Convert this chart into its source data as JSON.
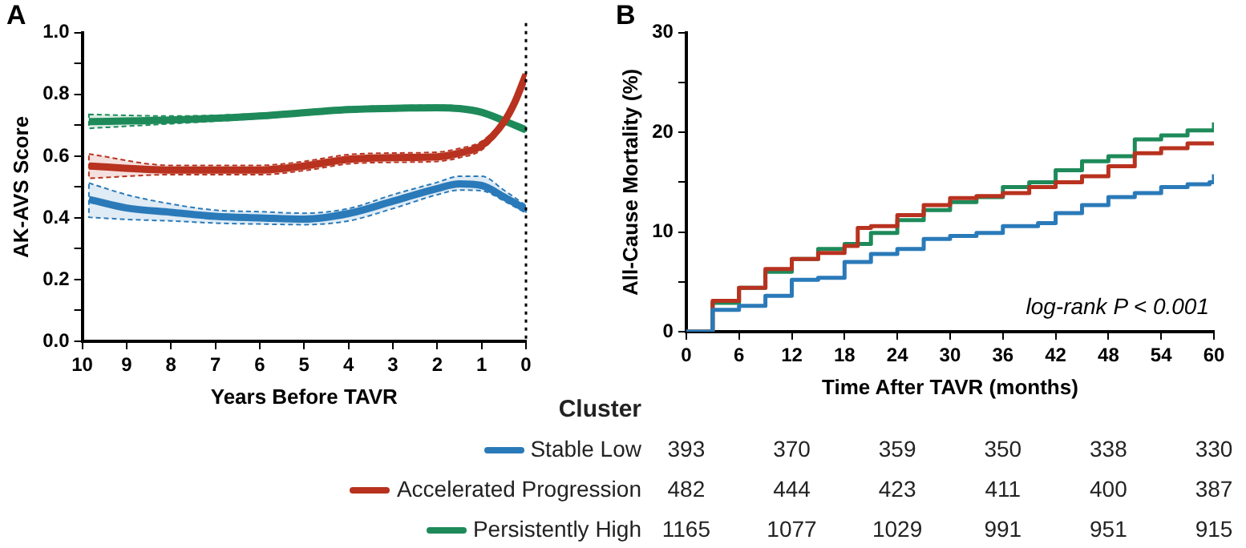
{
  "chart_data": [
    {
      "type": "line",
      "title": "A",
      "xlabel": "Years Before TAVR",
      "ylabel": "AK-AVS Score",
      "xlim": [
        10,
        0
      ],
      "xticks": [
        10,
        9,
        8,
        7,
        6,
        5,
        4,
        3,
        2,
        1,
        0
      ],
      "ylim": [
        0,
        1
      ],
      "yticks": [
        {
          "value": 0,
          "label": "0.0"
        },
        {
          "value": 0.1,
          "label": null
        },
        {
          "value": 0.2,
          "label": "0.2"
        },
        {
          "value": 0.3,
          "label": null
        },
        {
          "value": 0.4,
          "label": "0.4"
        },
        {
          "value": 0.5,
          "label": null
        },
        {
          "value": 0.6,
          "label": "0.6"
        },
        {
          "value": 0.7,
          "label": null
        },
        {
          "value": 0.8,
          "label": "0.8"
        },
        {
          "value": 0.9,
          "label": null
        },
        {
          "value": 1,
          "label": "1.0"
        }
      ],
      "grid": false,
      "marker": "none",
      "line_style": "solid",
      "ref_lines": [
        {
          "axis": "x",
          "value": 0,
          "color": "#000000",
          "line_style": "dotted"
        }
      ],
      "series": [
        {
          "color": "#2a7ab9",
          "x": [
            9.85,
            9,
            8,
            7,
            6,
            5,
            4,
            3,
            2,
            1.5,
            1,
            0.5,
            0
          ],
          "values": [
            0.46,
            0.432,
            0.418,
            0.405,
            0.4,
            0.396,
            0.414,
            0.454,
            0.495,
            0.51,
            0.505,
            0.468,
            0.427
          ],
          "lower": [
            0.402,
            0.395,
            0.39,
            0.383,
            0.38,
            0.378,
            0.39,
            0.43,
            0.475,
            0.49,
            0.488,
            0.455,
            0.415
          ],
          "upper": [
            0.513,
            0.475,
            0.445,
            0.425,
            0.42,
            0.415,
            0.43,
            0.475,
            0.515,
            0.535,
            0.535,
            0.49,
            0.44
          ]
        },
        {
          "color": "#b8321f",
          "x": [
            9.85,
            8,
            6,
            5,
            4,
            3,
            2,
            1.5,
            1,
            0.5,
            0.25,
            0
          ],
          "values": [
            0.568,
            0.555,
            0.555,
            0.568,
            0.59,
            0.595,
            0.598,
            0.61,
            0.634,
            0.71,
            0.775,
            0.865
          ],
          "lower": [
            0.528,
            0.54,
            0.54,
            0.553,
            0.575,
            0.58,
            0.583,
            0.595,
            0.62,
            0.7,
            0.765,
            0.855
          ],
          "upper": [
            0.607,
            0.57,
            0.57,
            0.583,
            0.605,
            0.61,
            0.613,
            0.625,
            0.648,
            0.72,
            0.785,
            0.875
          ]
        },
        {
          "color": "#1e8a5a",
          "x": [
            9.85,
            8,
            6,
            4,
            3,
            2,
            1.5,
            1,
            0.5,
            0
          ],
          "values": [
            0.712,
            0.717,
            0.73,
            0.751,
            0.755,
            0.757,
            0.754,
            0.742,
            0.715,
            0.685
          ],
          "lower": [
            0.69,
            0.705,
            0.722,
            0.743,
            0.747,
            0.749,
            0.746,
            0.734,
            0.707,
            0.677
          ],
          "upper": [
            0.735,
            0.73,
            0.738,
            0.759,
            0.763,
            0.765,
            0.762,
            0.75,
            0.723,
            0.693
          ]
        }
      ]
    },
    {
      "type": "step",
      "title": "B",
      "xlabel": "Time After TAVR (months)",
      "ylabel": "All-Cause Mortality (%)",
      "xlim": [
        0,
        60
      ],
      "xticks": [
        0,
        6,
        12,
        18,
        24,
        30,
        36,
        42,
        48,
        54,
        60
      ],
      "ylim": [
        0,
        30
      ],
      "yticks": [
        0,
        {
          "value": 5,
          "label": null
        },
        10,
        {
          "value": 15,
          "label": null
        },
        20,
        {
          "value": 25,
          "label": null
        },
        30
      ],
      "grid": false,
      "marker": "none",
      "line_style": "solid",
      "annotations": [
        "log-rank P < 0.001"
      ],
      "series": [
        {
          "color": "#2a7ab9",
          "x": [
            0,
            3,
            6,
            9,
            12,
            15,
            18,
            21,
            24,
            27,
            30,
            33,
            36,
            39,
            40,
            42,
            45,
            48,
            51,
            54,
            57,
            59.5,
            60
          ],
          "values": [
            0,
            2.2,
            2.6,
            3.6,
            5.2,
            5.4,
            7.0,
            7.8,
            8.3,
            9.3,
            9.6,
            9.9,
            10.6,
            10.6,
            10.9,
            11.9,
            12.7,
            13.5,
            13.9,
            14.5,
            14.8,
            15.0,
            15.8
          ]
        },
        {
          "color": "#b8321f",
          "x": [
            0,
            3,
            6,
            9,
            12,
            15,
            18,
            19.5,
            21,
            24,
            27,
            30,
            33,
            36,
            39,
            42,
            45,
            48,
            51,
            54,
            57,
            60
          ],
          "values": [
            0,
            3.1,
            4.4,
            6.3,
            7.3,
            7.9,
            8.6,
            10.4,
            10.6,
            11.7,
            12.7,
            13.4,
            13.6,
            13.9,
            14.5,
            15.0,
            15.6,
            16.6,
            17.9,
            18.4,
            18.9,
            19.1
          ]
        },
        {
          "color": "#1e8a5a",
          "x": [
            0,
            3,
            6,
            9,
            12,
            15,
            18,
            21,
            24,
            27,
            30,
            33,
            36,
            39,
            42,
            45,
            48,
            51,
            54,
            57,
            60
          ],
          "values": [
            0,
            2.9,
            4.4,
            6.0,
            7.3,
            8.3,
            8.8,
            9.9,
            11.2,
            12.2,
            13.0,
            13.5,
            14.5,
            15.0,
            16.2,
            17.1,
            17.6,
            19.3,
            19.7,
            20.2,
            21.0
          ]
        }
      ]
    },
    {
      "type": "other",
      "title": "Cluster",
      "y_categories": [
        "Stable Low",
        "Accelerated Progression",
        "Persistently High"
      ],
      "colors": [
        "#2a7ab9",
        "#b8321f",
        "#1e8a5a"
      ],
      "categories": [
        null,
        null,
        null,
        null,
        null,
        null
      ],
      "cell_labels": [
        [
          "393",
          "370",
          "359",
          "350",
          "338",
          "330"
        ],
        [
          "482",
          "444",
          "423",
          "411",
          "400",
          "387"
        ],
        [
          "1165",
          "1077",
          "1029",
          "991",
          "951",
          "915"
        ]
      ]
    }
  ]
}
